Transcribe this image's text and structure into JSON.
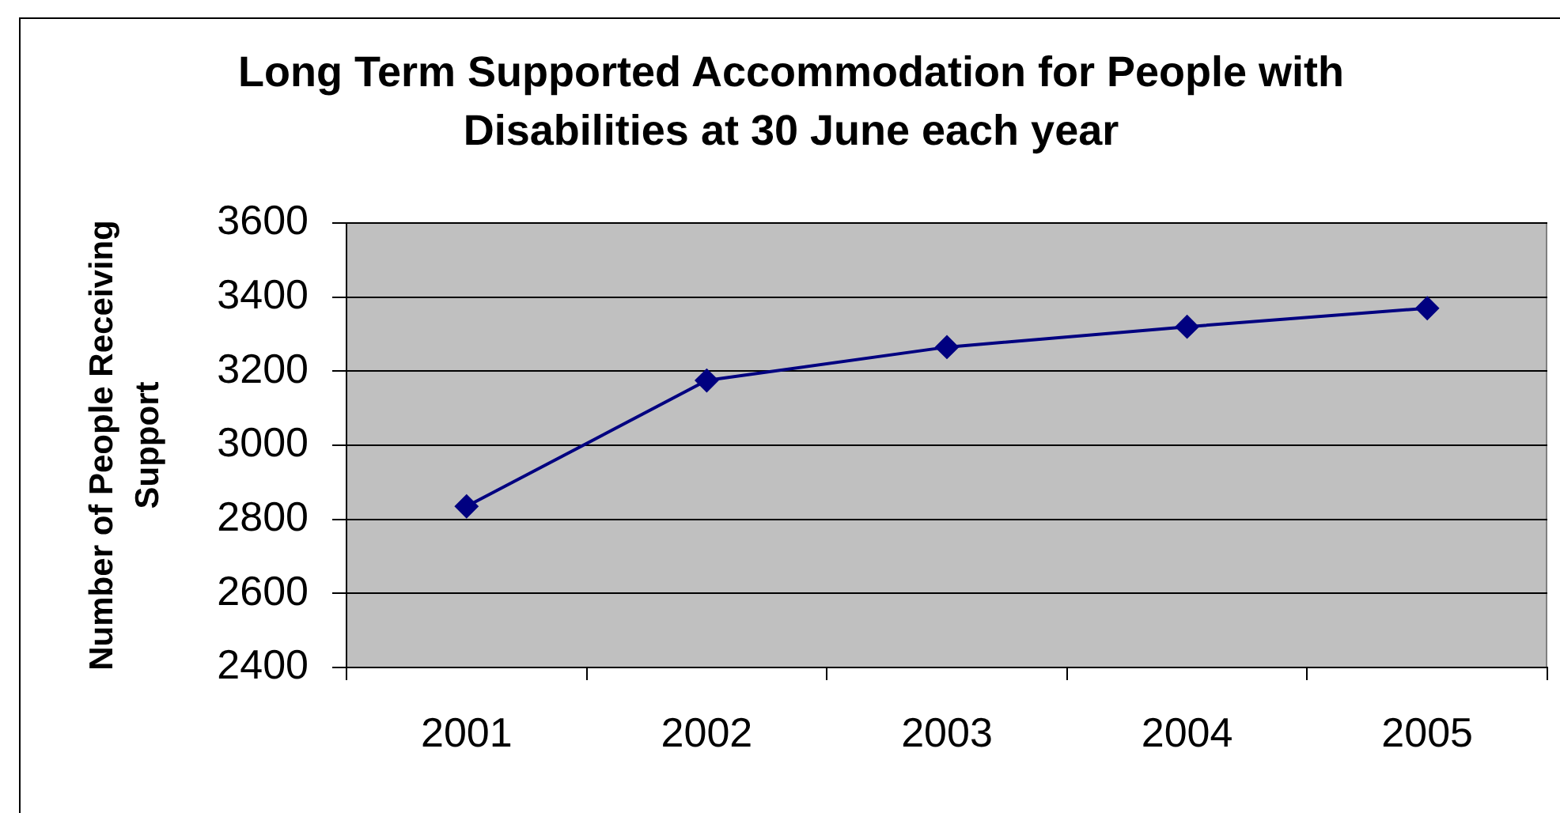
{
  "chart_data": {
    "type": "line",
    "title": "Long Term Supported Accommodation for People with Disabilities at 30 June each year",
    "ylabel": "Number of People Receiving Support",
    "categories": [
      "2001",
      "2002",
      "2003",
      "2004",
      "2005"
    ],
    "series": [
      {
        "color": "#000080",
        "values": [
          2835,
          3175,
          3265,
          3320,
          3370
        ]
      }
    ],
    "ylim": [
      2400,
      3600
    ],
    "yticks": [
      2400,
      2600,
      2800,
      3000,
      3200,
      3400,
      3600
    ],
    "grid": "y",
    "marker": "diamond",
    "line_style": "solid"
  }
}
